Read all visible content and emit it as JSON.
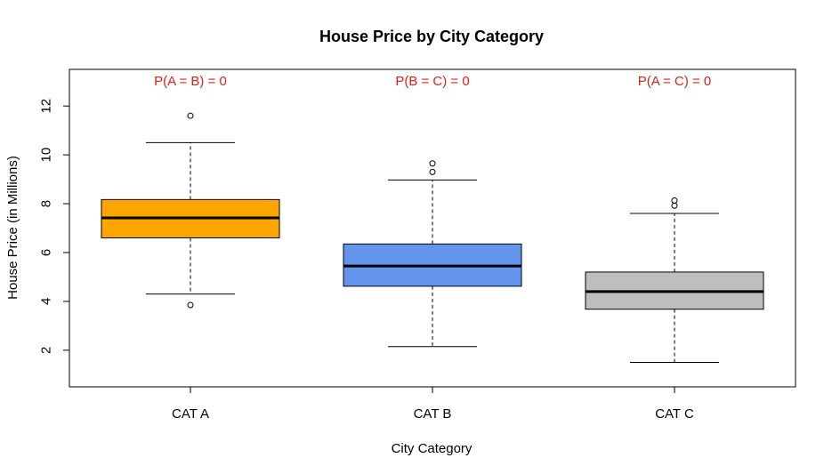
{
  "chart_data": {
    "type": "box",
    "title": "House Price by City Category",
    "xlabel": "City Category",
    "ylabel": "House Price (in Millions)",
    "ylim": [
      0.5,
      13.5
    ],
    "yticks": [
      "2",
      "4",
      "6",
      "8",
      "10",
      "12"
    ],
    "grid": false,
    "categories": [
      "CAT A",
      "CAT B",
      "CAT C"
    ],
    "boxes": [
      {
        "category": "CAT A",
        "color": "#FFA500",
        "whisker_low": 4.3,
        "q1": 6.6,
        "median": 7.42,
        "q3": 8.17,
        "whisker_high": 10.5,
        "outliers": [
          11.6,
          3.85
        ]
      },
      {
        "category": "CAT B",
        "color": "#6495ED",
        "whisker_low": 2.15,
        "q1": 4.62,
        "median": 5.45,
        "q3": 6.35,
        "whisker_high": 8.97,
        "outliers": [
          9.3,
          9.65
        ]
      },
      {
        "category": "CAT C",
        "color": "#BEBEBE",
        "whisker_low": 1.5,
        "q1": 3.68,
        "median": 4.4,
        "q3": 5.2,
        "whisker_high": 7.6,
        "outliers": [
          7.92,
          8.13
        ]
      }
    ],
    "annotations": [
      {
        "text": "P(A = B) =  0",
        "category": "CAT A"
      },
      {
        "text": "P(B = C) =  0",
        "category": "CAT B"
      },
      {
        "text": "P(A = C) =  0",
        "category": "CAT C"
      }
    ],
    "annotation_color": "#E0201B"
  }
}
